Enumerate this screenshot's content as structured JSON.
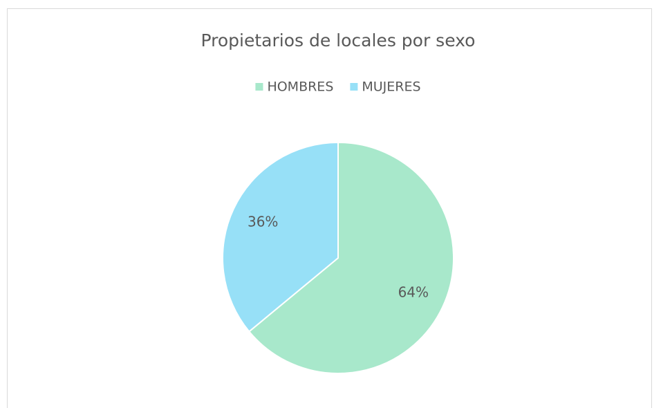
{
  "chart_data": {
    "type": "pie",
    "title": "Propietarios de locales por sexo",
    "categories": [
      "HOMBRES",
      "MUJERES"
    ],
    "values": [
      64,
      36
    ],
    "value_labels": [
      "64%",
      "36%"
    ],
    "colors": [
      "#a8e8cb",
      "#97e0f7"
    ],
    "legend": "top"
  }
}
